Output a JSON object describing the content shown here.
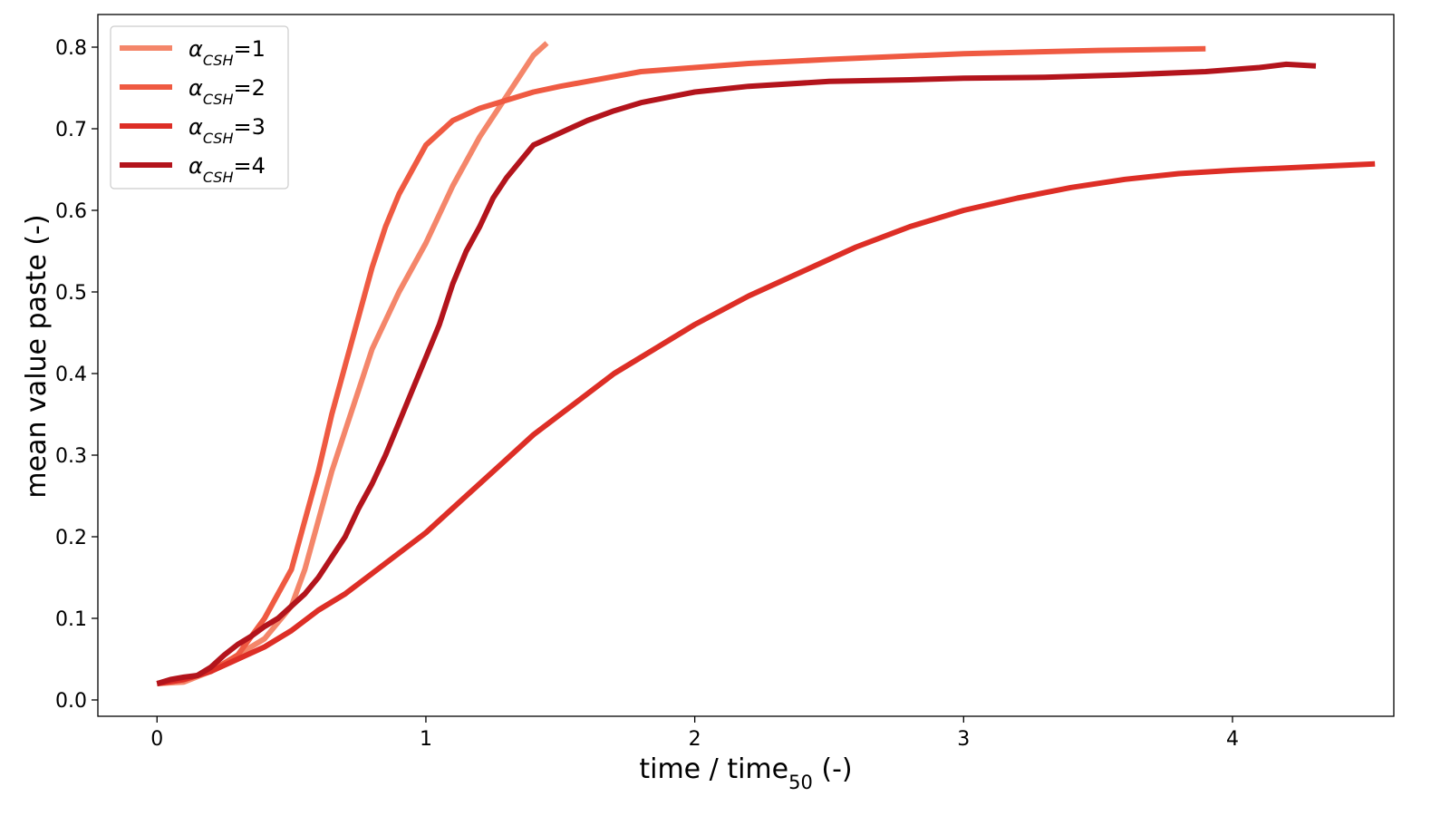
{
  "chart_data": {
    "type": "line",
    "xlabel": {
      "main": "time / time",
      "sub": "50",
      "suffix": " (-)"
    },
    "ylabel": "mean value paste (-)",
    "xlim": [
      -0.22,
      4.6
    ],
    "ylim": [
      -0.02,
      0.84
    ],
    "x_ticks": [
      0,
      1,
      2,
      3,
      4
    ],
    "x_tick_labels": [
      "0",
      "1",
      "2",
      "3",
      "4"
    ],
    "y_ticks": [
      0.0,
      0.1,
      0.2,
      0.3,
      0.4,
      0.5,
      0.6,
      0.7,
      0.8
    ],
    "y_tick_labels": [
      "0.0",
      "0.1",
      "0.2",
      "0.3",
      "0.4",
      "0.5",
      "0.6",
      "0.7",
      "0.8"
    ],
    "grid": false,
    "legend_position": "top-left",
    "series": [
      {
        "name": "α",
        "name_sub": "CSH",
        "name_suffix": "=1",
        "color": "#f4866a",
        "points": [
          [
            0,
            0.02
          ],
          [
            0.1,
            0.022
          ],
          [
            0.2,
            0.035
          ],
          [
            0.3,
            0.055
          ],
          [
            0.4,
            0.075
          ],
          [
            0.5,
            0.115
          ],
          [
            0.55,
            0.16
          ],
          [
            0.6,
            0.22
          ],
          [
            0.65,
            0.28
          ],
          [
            0.7,
            0.33
          ],
          [
            0.75,
            0.38
          ],
          [
            0.8,
            0.43
          ],
          [
            0.9,
            0.5
          ],
          [
            1.0,
            0.56
          ],
          [
            1.1,
            0.63
          ],
          [
            1.2,
            0.69
          ],
          [
            1.3,
            0.74
          ],
          [
            1.4,
            0.79
          ],
          [
            1.45,
            0.805
          ]
        ]
      },
      {
        "name": "α",
        "name_sub": "CSH",
        "name_suffix": "=2",
        "color": "#ef5a42",
        "points": [
          [
            0,
            0.02
          ],
          [
            0.1,
            0.025
          ],
          [
            0.2,
            0.035
          ],
          [
            0.3,
            0.055
          ],
          [
            0.4,
            0.1
          ],
          [
            0.5,
            0.16
          ],
          [
            0.55,
            0.22
          ],
          [
            0.6,
            0.28
          ],
          [
            0.65,
            0.35
          ],
          [
            0.7,
            0.41
          ],
          [
            0.75,
            0.47
          ],
          [
            0.8,
            0.53
          ],
          [
            0.85,
            0.58
          ],
          [
            0.9,
            0.62
          ],
          [
            0.95,
            0.65
          ],
          [
            1.0,
            0.68
          ],
          [
            1.1,
            0.71
          ],
          [
            1.2,
            0.725
          ],
          [
            1.3,
            0.735
          ],
          [
            1.4,
            0.745
          ],
          [
            1.5,
            0.752
          ],
          [
            1.6,
            0.758
          ],
          [
            1.8,
            0.77
          ],
          [
            2.0,
            0.775
          ],
          [
            2.2,
            0.78
          ],
          [
            2.5,
            0.785
          ],
          [
            3.0,
            0.792
          ],
          [
            3.5,
            0.796
          ],
          [
            3.9,
            0.798
          ]
        ]
      },
      {
        "name": "α",
        "name_sub": "CSH",
        "name_suffix": "=3",
        "color": "#dd2e26",
        "points": [
          [
            0,
            0.02
          ],
          [
            0.1,
            0.025
          ],
          [
            0.2,
            0.035
          ],
          [
            0.3,
            0.05
          ],
          [
            0.4,
            0.065
          ],
          [
            0.5,
            0.085
          ],
          [
            0.6,
            0.11
          ],
          [
            0.7,
            0.13
          ],
          [
            0.8,
            0.155
          ],
          [
            0.9,
            0.18
          ],
          [
            1.0,
            0.205
          ],
          [
            1.1,
            0.235
          ],
          [
            1.2,
            0.265
          ],
          [
            1.3,
            0.295
          ],
          [
            1.4,
            0.325
          ],
          [
            1.5,
            0.35
          ],
          [
            1.6,
            0.375
          ],
          [
            1.7,
            0.4
          ],
          [
            1.8,
            0.42
          ],
          [
            1.9,
            0.44
          ],
          [
            2.0,
            0.46
          ],
          [
            2.2,
            0.495
          ],
          [
            2.4,
            0.525
          ],
          [
            2.6,
            0.555
          ],
          [
            2.8,
            0.58
          ],
          [
            3.0,
            0.6
          ],
          [
            3.2,
            0.615
          ],
          [
            3.4,
            0.628
          ],
          [
            3.6,
            0.638
          ],
          [
            3.8,
            0.645
          ],
          [
            4.0,
            0.649
          ],
          [
            4.2,
            0.652
          ],
          [
            4.4,
            0.655
          ],
          [
            4.53,
            0.657
          ]
        ]
      },
      {
        "name": "α",
        "name_sub": "CSH",
        "name_suffix": "=4",
        "color": "#b3141c",
        "points": [
          [
            0,
            0.02
          ],
          [
            0.05,
            0.025
          ],
          [
            0.1,
            0.028
          ],
          [
            0.15,
            0.03
          ],
          [
            0.2,
            0.04
          ],
          [
            0.25,
            0.055
          ],
          [
            0.3,
            0.068
          ],
          [
            0.35,
            0.078
          ],
          [
            0.4,
            0.09
          ],
          [
            0.45,
            0.1
          ],
          [
            0.5,
            0.115
          ],
          [
            0.55,
            0.13
          ],
          [
            0.6,
            0.15
          ],
          [
            0.65,
            0.175
          ],
          [
            0.7,
            0.2
          ],
          [
            0.75,
            0.235
          ],
          [
            0.8,
            0.265
          ],
          [
            0.85,
            0.3
          ],
          [
            0.9,
            0.34
          ],
          [
            0.95,
            0.38
          ],
          [
            1.0,
            0.42
          ],
          [
            1.05,
            0.46
          ],
          [
            1.1,
            0.51
          ],
          [
            1.15,
            0.55
          ],
          [
            1.2,
            0.58
          ],
          [
            1.25,
            0.615
          ],
          [
            1.3,
            0.64
          ],
          [
            1.35,
            0.66
          ],
          [
            1.4,
            0.68
          ],
          [
            1.5,
            0.695
          ],
          [
            1.6,
            0.71
          ],
          [
            1.7,
            0.722
          ],
          [
            1.8,
            0.732
          ],
          [
            2.0,
            0.745
          ],
          [
            2.2,
            0.752
          ],
          [
            2.5,
            0.758
          ],
          [
            2.8,
            0.76
          ],
          [
            3.0,
            0.762
          ],
          [
            3.3,
            0.763
          ],
          [
            3.6,
            0.766
          ],
          [
            3.9,
            0.77
          ],
          [
            4.1,
            0.775
          ],
          [
            4.2,
            0.779
          ],
          [
            4.31,
            0.777
          ]
        ]
      }
    ]
  }
}
